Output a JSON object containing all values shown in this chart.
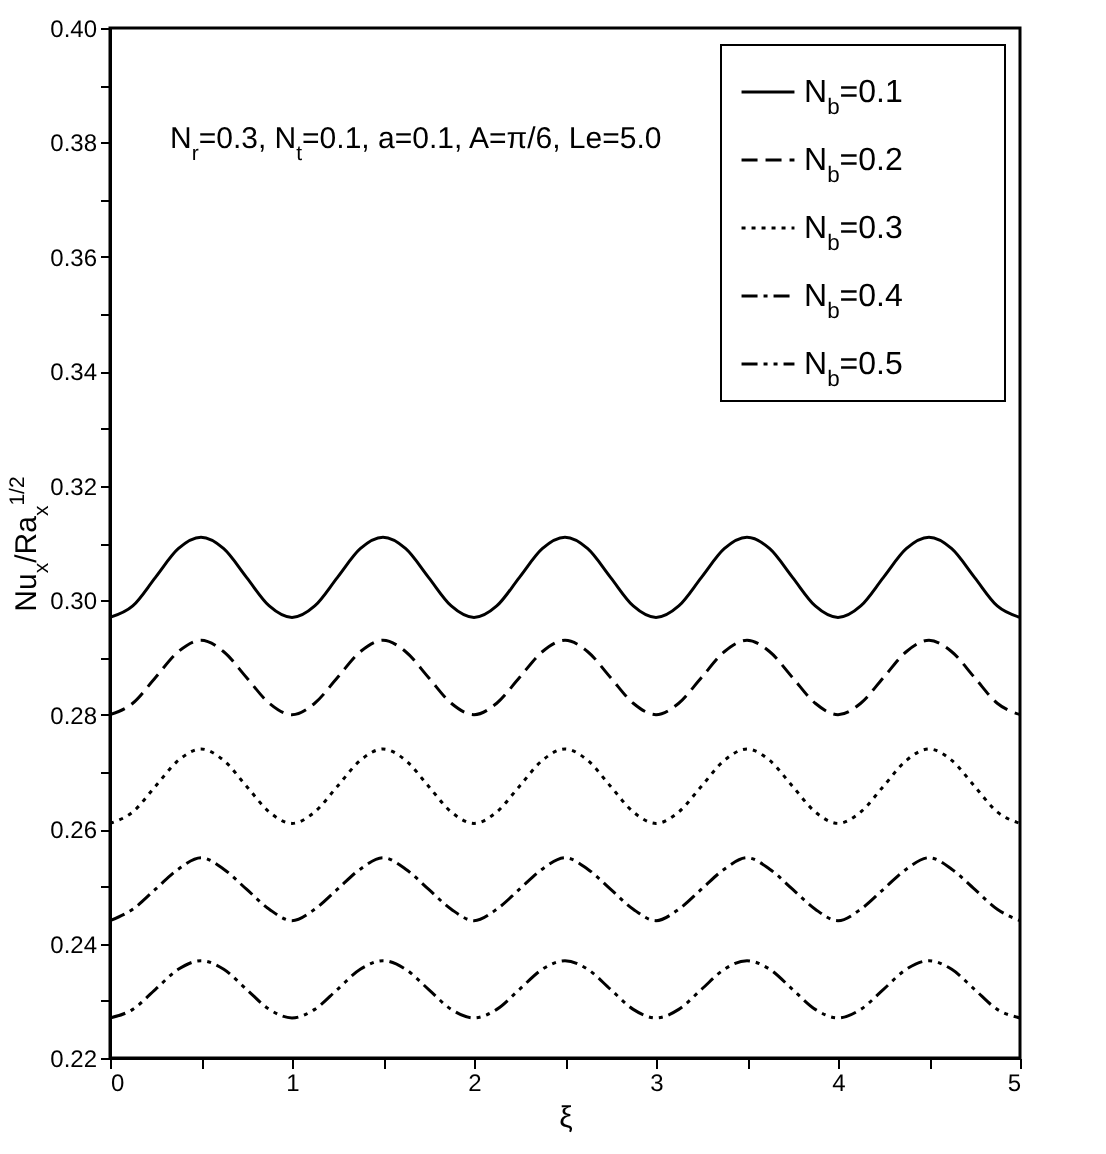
{
  "chart_data": {
    "type": "line",
    "xlabel": "ξ",
    "ylabel": "Nu$_{x}$/Ra$_{x}$$^{1/2}$",
    "annotations": [
      "N$_{r}$=0.3, N$_{t}$=0.1, a=0.1, A=π/6, Le=5.0"
    ],
    "x": [
      0,
      0.125,
      0.25,
      0.375,
      0.5,
      0.625,
      0.75,
      0.875,
      1,
      1.125,
      1.25,
      1.375,
      1.5,
      1.625,
      1.75,
      1.875,
      2,
      2.125,
      2.25,
      2.375,
      2.5,
      2.625,
      2.75,
      2.875,
      3,
      3.125,
      3.25,
      3.375,
      3.5,
      3.625,
      3.75,
      3.875,
      4,
      4.125,
      4.25,
      4.375,
      4.5,
      4.625,
      4.75,
      4.875,
      5
    ],
    "series": [
      {
        "name": "N$_{b}$=0.1",
        "color": "#000000",
        "line_style": "solid",
        "values": [
          0.297,
          0.299,
          0.304,
          0.309,
          0.311,
          0.309,
          0.304,
          0.299,
          0.297,
          0.299,
          0.304,
          0.309,
          0.311,
          0.309,
          0.304,
          0.299,
          0.297,
          0.299,
          0.304,
          0.309,
          0.311,
          0.309,
          0.304,
          0.299,
          0.297,
          0.299,
          0.304,
          0.309,
          0.311,
          0.309,
          0.304,
          0.299,
          0.297,
          0.299,
          0.304,
          0.309,
          0.311,
          0.309,
          0.304,
          0.299,
          0.297
        ]
      },
      {
        "name": "N$_{b}$=0.2",
        "color": "#000000",
        "line_style": "dashed",
        "values": [
          0.28,
          0.282,
          0.2865,
          0.291,
          0.293,
          0.291,
          0.2865,
          0.282,
          0.28,
          0.282,
          0.2865,
          0.291,
          0.293,
          0.291,
          0.2865,
          0.282,
          0.28,
          0.282,
          0.2865,
          0.291,
          0.293,
          0.291,
          0.2865,
          0.282,
          0.28,
          0.282,
          0.2865,
          0.291,
          0.293,
          0.291,
          0.2865,
          0.282,
          0.28,
          0.282,
          0.2865,
          0.291,
          0.293,
          0.291,
          0.2865,
          0.282,
          0.28
        ]
      },
      {
        "name": "N$_{b}$=0.3",
        "color": "#000000",
        "line_style": "dotted",
        "values": [
          0.261,
          0.263,
          0.2675,
          0.272,
          0.274,
          0.272,
          0.2675,
          0.263,
          0.261,
          0.263,
          0.2675,
          0.272,
          0.274,
          0.272,
          0.2675,
          0.263,
          0.261,
          0.263,
          0.2675,
          0.272,
          0.274,
          0.272,
          0.2675,
          0.263,
          0.261,
          0.263,
          0.2675,
          0.272,
          0.274,
          0.272,
          0.2675,
          0.263,
          0.261,
          0.263,
          0.2675,
          0.272,
          0.274,
          0.272,
          0.2675,
          0.263,
          0.261
        ]
      },
      {
        "name": "N$_{b}$=0.4",
        "color": "#000000",
        "line_style": "dashdot",
        "values": [
          0.244,
          0.246,
          0.2495,
          0.253,
          0.255,
          0.253,
          0.2495,
          0.246,
          0.244,
          0.246,
          0.2495,
          0.253,
          0.255,
          0.253,
          0.2495,
          0.246,
          0.244,
          0.246,
          0.2495,
          0.253,
          0.255,
          0.253,
          0.2495,
          0.246,
          0.244,
          0.246,
          0.2495,
          0.253,
          0.255,
          0.253,
          0.2495,
          0.246,
          0.244,
          0.246,
          0.2495,
          0.253,
          0.255,
          0.253,
          0.2495,
          0.246,
          0.244
        ]
      },
      {
        "name": "N$_{b}$=0.5",
        "color": "#000000",
        "line_style": "dashdotdot",
        "values": [
          0.227,
          0.2285,
          0.232,
          0.2355,
          0.237,
          0.2355,
          0.232,
          0.2285,
          0.227,
          0.2285,
          0.232,
          0.2355,
          0.237,
          0.2355,
          0.232,
          0.2285,
          0.227,
          0.2285,
          0.232,
          0.2355,
          0.237,
          0.2355,
          0.232,
          0.2285,
          0.227,
          0.2285,
          0.232,
          0.2355,
          0.237,
          0.2355,
          0.232,
          0.2285,
          0.227,
          0.2285,
          0.232,
          0.2355,
          0.237,
          0.2355,
          0.232,
          0.2285,
          0.227
        ]
      }
    ],
    "xlim": [
      0,
      5
    ],
    "xticks": [
      0,
      {
        "value": 0.5,
        "label": null
      },
      1,
      {
        "value": 1.5,
        "label": null
      },
      2,
      {
        "value": 2.5,
        "label": null
      },
      3,
      {
        "value": 3.5,
        "label": null
      },
      4,
      {
        "value": 4.5,
        "label": null
      },
      5
    ],
    "ylim": [
      0.22,
      0.4
    ],
    "yticks": [
      0.22,
      {
        "value": 0.23,
        "label": null
      },
      0.24,
      {
        "value": 0.25,
        "label": null
      },
      0.26,
      {
        "value": 0.27,
        "label": null
      },
      0.28,
      {
        "value": 0.29,
        "label": null
      },
      {
        "value": 0.3,
        "label": "0.30"
      },
      {
        "value": 0.31,
        "label": null
      },
      0.32,
      {
        "value": 0.33,
        "label": null
      },
      0.34,
      {
        "value": 0.35,
        "label": null
      },
      0.36,
      {
        "value": 0.37,
        "label": null
      },
      0.38,
      {
        "value": 0.39,
        "label": null
      },
      {
        "value": 0.4,
        "label": "0.40"
      }
    ],
    "legend": "top right"
  }
}
